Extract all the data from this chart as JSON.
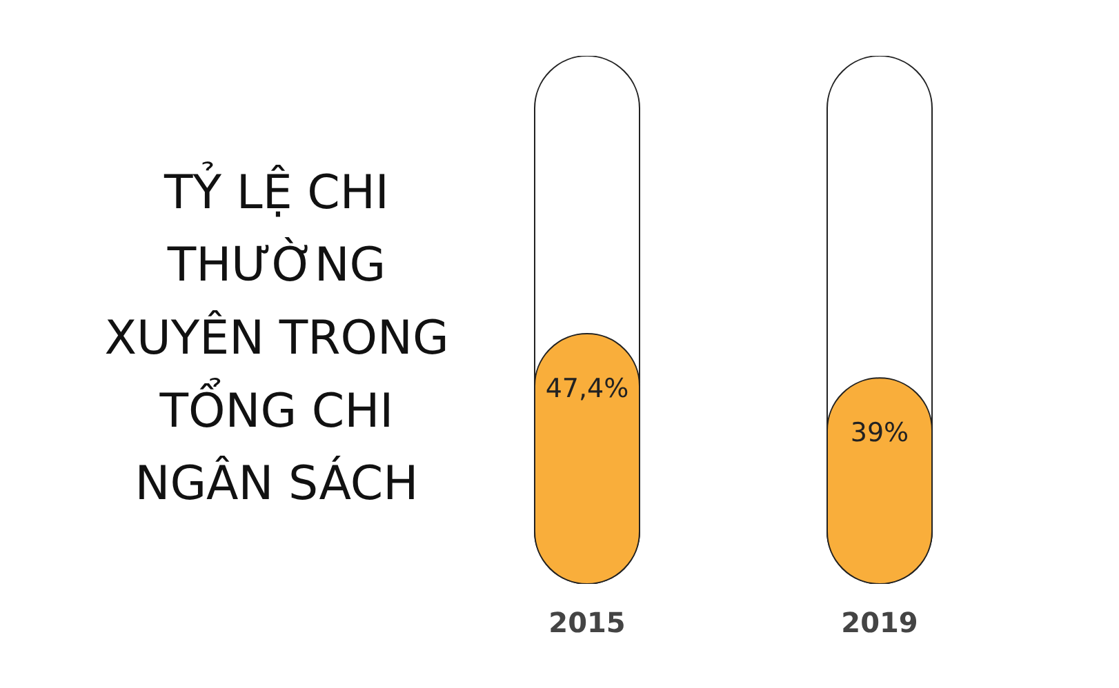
{
  "chart_data": {
    "type": "bar",
    "title": "TỶ LỆ CHI THƯỜNG XUYÊN TRONG TỔNG CHI NGÂN SÁCH",
    "categories": [
      "2015",
      "2019"
    ],
    "values": [
      47.4,
      39
    ],
    "value_labels": [
      "47,4%",
      "39%"
    ],
    "color": "#f9ae3b",
    "ylim": [
      0,
      100
    ],
    "tick_labels": "x",
    "grid": false
  }
}
